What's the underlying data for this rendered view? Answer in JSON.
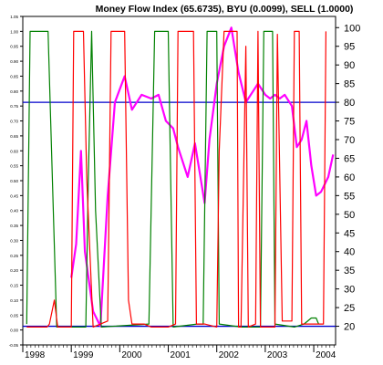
{
  "chart_data": {
    "type": "line",
    "title": "Money Flow Index (65.6735), BYU (0.0099), SELL (1.0000)",
    "xlabel": "",
    "ylabel": "",
    "x_ticks": [
      "1998",
      "1999",
      "2000",
      "2001",
      "2002",
      "2003",
      "2004"
    ],
    "x_range": [
      1998.0,
      2004.15
    ],
    "left_axis": {
      "range": [
        -0.05,
        1.05
      ],
      "ticks": [
        "1.05",
        "1.00",
        "0.95",
        "0.90",
        "0.85",
        "0.80",
        "0.75",
        "0.70",
        "0.65",
        "0.60",
        "0.55",
        "0.50",
        "0.45",
        "0.40",
        "0.35",
        "0.30",
        "0.25",
        "0.20",
        "0.15",
        "0.10",
        "0.05",
        "0.00",
        "-0.05"
      ]
    },
    "right_axis": {
      "range": [
        15,
        103
      ],
      "ticks": [
        "100",
        "95",
        "90",
        "85",
        "80",
        "75",
        "70",
        "65",
        "60",
        "55",
        "50",
        "45",
        "40",
        "35",
        "30",
        "25",
        "20"
      ]
    },
    "reference_lines": [
      80,
      20
    ],
    "grid": false,
    "colors": {
      "mfi": "#ff00ff",
      "buy": "#008000",
      "sell": "#ff0000",
      "reference": "#0000cc",
      "axis": "#000000",
      "background": "#ffffff"
    },
    "series": [
      {
        "axis": "right",
        "color": "#ff00ff",
        "points": [
          [
            1999.0,
            33
          ],
          [
            1999.1,
            42
          ],
          [
            1999.2,
            67
          ],
          [
            1999.28,
            40
          ],
          [
            1999.45,
            24
          ],
          [
            1999.6,
            20
          ],
          [
            1999.75,
            55
          ],
          [
            1999.9,
            80
          ],
          [
            2000.1,
            87
          ],
          [
            2000.25,
            78
          ],
          [
            2000.45,
            82
          ],
          [
            2000.65,
            81
          ],
          [
            2000.8,
            82
          ],
          [
            2000.95,
            75
          ],
          [
            2001.1,
            73
          ],
          [
            2001.2,
            68
          ],
          [
            2001.4,
            60
          ],
          [
            2001.55,
            69
          ],
          [
            2001.75,
            53
          ],
          [
            2001.85,
            70
          ],
          [
            2002.0,
            85
          ],
          [
            2002.15,
            95
          ],
          [
            2002.3,
            100
          ],
          [
            2002.45,
            88
          ],
          [
            2002.6,
            80
          ],
          [
            2002.75,
            83
          ],
          [
            2002.85,
            85
          ],
          [
            2003.0,
            82
          ],
          [
            2003.1,
            81
          ],
          [
            2003.2,
            82
          ],
          [
            2003.3,
            81
          ],
          [
            2003.4,
            82
          ],
          [
            2003.55,
            79
          ],
          [
            2003.65,
            68
          ],
          [
            2003.75,
            70
          ],
          [
            2003.85,
            75
          ],
          [
            2003.95,
            63
          ],
          [
            2004.05,
            55
          ],
          [
            2004.15,
            56
          ],
          [
            2004.3,
            60
          ],
          [
            2004.4,
            66
          ]
        ]
      },
      {
        "axis": "left",
        "color": "#008000",
        "points": [
          [
            1998.08,
            0.02
          ],
          [
            1998.15,
            1.0
          ],
          [
            1998.52,
            1.0
          ],
          [
            1998.7,
            0.01
          ],
          [
            1999.3,
            0.01
          ],
          [
            1999.35,
            0.5
          ],
          [
            1999.42,
            1.0
          ],
          [
            1999.5,
            0.4
          ],
          [
            1999.62,
            0.01
          ],
          [
            2000.6,
            0.02
          ],
          [
            2000.72,
            1.0
          ],
          [
            2001.0,
            1.0
          ],
          [
            2001.1,
            0.01
          ],
          [
            2001.6,
            0.02
          ],
          [
            2001.72,
            0.02
          ],
          [
            2001.8,
            1.0
          ],
          [
            2002.0,
            1.0
          ],
          [
            2002.05,
            0.02
          ],
          [
            2002.5,
            0.01
          ],
          [
            2002.9,
            0.01
          ],
          [
            2002.97,
            1.0
          ],
          [
            2003.15,
            1.0
          ],
          [
            2003.2,
            0.02
          ],
          [
            2003.6,
            0.01
          ],
          [
            2003.8,
            0.02
          ],
          [
            2003.95,
            0.04
          ],
          [
            2004.05,
            0.04
          ],
          [
            2004.1,
            0.02
          ]
        ]
      },
      {
        "axis": "left",
        "color": "#ff0000",
        "points": [
          [
            1998.08,
            0.01
          ],
          [
            1998.5,
            0.01
          ],
          [
            1998.55,
            0.02
          ],
          [
            1998.65,
            0.1
          ],
          [
            1998.72,
            0.01
          ],
          [
            1999.0,
            0.01
          ],
          [
            1999.05,
            1.0
          ],
          [
            1999.25,
            1.0
          ],
          [
            1999.32,
            0.5
          ],
          [
            1999.45,
            0.01
          ],
          [
            1999.75,
            0.03
          ],
          [
            1999.82,
            1.0
          ],
          [
            2000.1,
            1.0
          ],
          [
            2000.18,
            0.1
          ],
          [
            2000.25,
            0.02
          ],
          [
            2000.5,
            0.02
          ],
          [
            2000.65,
            0.01
          ],
          [
            2001.0,
            0.01
          ],
          [
            2001.15,
            0.02
          ],
          [
            2001.2,
            1.0
          ],
          [
            2001.52,
            1.0
          ],
          [
            2001.58,
            0.02
          ],
          [
            2001.75,
            0.02
          ],
          [
            2002.0,
            0.01
          ],
          [
            2002.05,
            0.6
          ],
          [
            2002.15,
            1.0
          ],
          [
            2002.42,
            1.0
          ],
          [
            2002.45,
            0.01
          ],
          [
            2002.5,
            0.01
          ],
          [
            2002.6,
            0.95
          ],
          [
            2002.65,
            0.01
          ],
          [
            2002.8,
            0.02
          ],
          [
            2002.85,
            1.0
          ],
          [
            2002.9,
            0.01
          ],
          [
            2003.2,
            0.01
          ],
          [
            2003.25,
            0.99
          ],
          [
            2003.35,
            0.03
          ],
          [
            2003.55,
            0.03
          ],
          [
            2003.6,
            1.0
          ],
          [
            2003.7,
            1.0
          ],
          [
            2003.75,
            0.02
          ],
          [
            2004.2,
            0.02
          ],
          [
            2004.25,
            1.0
          ]
        ]
      }
    ]
  }
}
